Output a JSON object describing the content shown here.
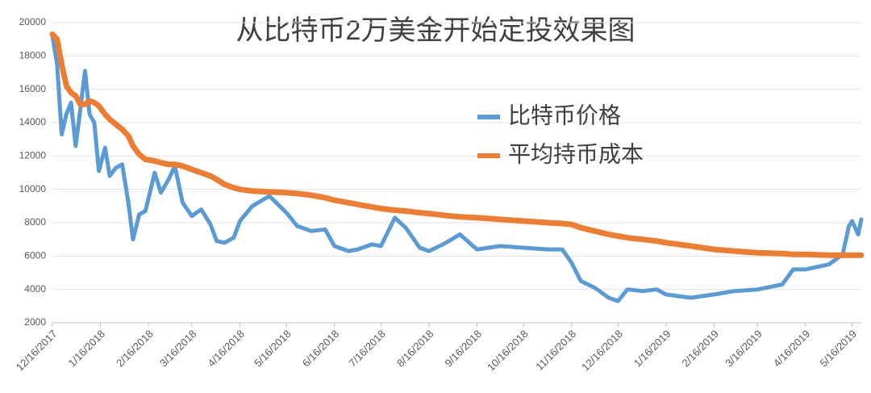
{
  "chart_data": {
    "type": "line",
    "title": "从比特币2万美金开始定投效果图",
    "x": [
      "12/16/2017",
      "12/19/2017",
      "12/22/2017",
      "12/25/2017",
      "12/28/2017",
      "12/31/2017",
      "1/3/2018",
      "1/6/2018",
      "1/9/2018",
      "1/12/2018",
      "1/15/2018",
      "1/19/2018",
      "1/22/2018",
      "1/26/2018",
      "1/30/2018",
      "2/3/2018",
      "2/6/2018",
      "2/10/2018",
      "2/14/2018",
      "2/20/2018",
      "2/24/2018",
      "3/1/2018",
      "3/5/2018",
      "3/10/2018",
      "3/16/2018",
      "3/22/2018",
      "3/28/2018",
      "4/1/2018",
      "4/6/2018",
      "4/12/2018",
      "4/16/2018",
      "4/24/2018",
      "5/5/2018",
      "5/16/2018",
      "5/23/2018",
      "6/1/2018",
      "6/10/2018",
      "6/16/2018",
      "6/25/2018",
      "7/1/2018",
      "7/10/2018",
      "7/16/2018",
      "7/25/2018",
      "8/1/2018",
      "8/10/2018",
      "8/16/2018",
      "8/25/2018",
      "9/5/2018",
      "9/16/2018",
      "10/1/2018",
      "10/16/2018",
      "11/1/2018",
      "11/10/2018",
      "11/16/2018",
      "11/22/2018",
      "12/1/2018",
      "12/10/2018",
      "12/16/2018",
      "12/22/2018",
      "1/1/2019",
      "1/10/2019",
      "1/16/2019",
      "2/1/2019",
      "2/16/2019",
      "3/1/2019",
      "3/16/2019",
      "4/1/2019",
      "4/8/2019",
      "4/16/2019",
      "5/1/2019",
      "5/10/2019",
      "5/14/2019",
      "5/16/2019",
      "5/20/2019",
      "5/22/2019"
    ],
    "series": [
      {
        "name": "比特币价格",
        "color": "#5b9bd5",
        "values": [
          19200,
          17500,
          13300,
          14500,
          15200,
          12600,
          14800,
          17100,
          14500,
          14000,
          11100,
          12500,
          10800,
          11300,
          11500,
          9200,
          7000,
          8500,
          8700,
          11000,
          9800,
          10600,
          11400,
          9200,
          8400,
          8800,
          7900,
          6900,
          6800,
          7100,
          8100,
          9000,
          9600,
          8600,
          7800,
          7500,
          7600,
          6600,
          6300,
          6400,
          6700,
          6600,
          8300,
          7700,
          6500,
          6300,
          6700,
          7300,
          6400,
          6600,
          6500,
          6400,
          6400,
          5600,
          4500,
          4100,
          3500,
          3300,
          4000,
          3900,
          4000,
          3700,
          3500,
          3700,
          3900,
          4000,
          4300,
          5200,
          5200,
          5500,
          6100,
          7800,
          8100,
          7300,
          8200
        ]
      },
      {
        "name": "平均持币成本",
        "color": "#ed7d31",
        "values": [
          19300,
          19000,
          17500,
          16200,
          15800,
          15600,
          15100,
          15100,
          15300,
          15200,
          15000,
          14500,
          14200,
          13900,
          13600,
          13200,
          12600,
          12100,
          11800,
          11700,
          11600,
          11500,
          11500,
          11400,
          11200,
          11000,
          10800,
          10600,
          10300,
          10100,
          10000,
          9900,
          9850,
          9800,
          9750,
          9650,
          9500,
          9350,
          9200,
          9100,
          8950,
          8850,
          8750,
          8700,
          8600,
          8550,
          8450,
          8350,
          8300,
          8200,
          8100,
          8000,
          7950,
          7900,
          7700,
          7500,
          7300,
          7200,
          7100,
          7000,
          6900,
          6800,
          6600,
          6400,
          6300,
          6200,
          6150,
          6100,
          6100,
          6050,
          6050,
          6050,
          6050,
          6050,
          6050
        ]
      }
    ],
    "xlim": [
      "12/16/2017",
      "5/22/2019"
    ],
    "xticks": [
      "12/16/2017",
      "1/16/2018",
      "2/16/2018",
      "3/16/2018",
      "4/16/2018",
      "5/16/2018",
      "6/16/2018",
      "7/16/2018",
      "8/16/2018",
      "9/16/2018",
      "10/16/2018",
      "11/16/2018",
      "12/16/2018",
      "1/16/2019",
      "2/16/2019",
      "3/16/2019",
      "4/16/2019",
      "5/16/2019"
    ],
    "ylim": [
      2000,
      20000
    ],
    "yticks": [
      2000,
      4000,
      6000,
      8000,
      10000,
      12000,
      14000,
      16000,
      18000,
      20000
    ],
    "grid": true
  }
}
